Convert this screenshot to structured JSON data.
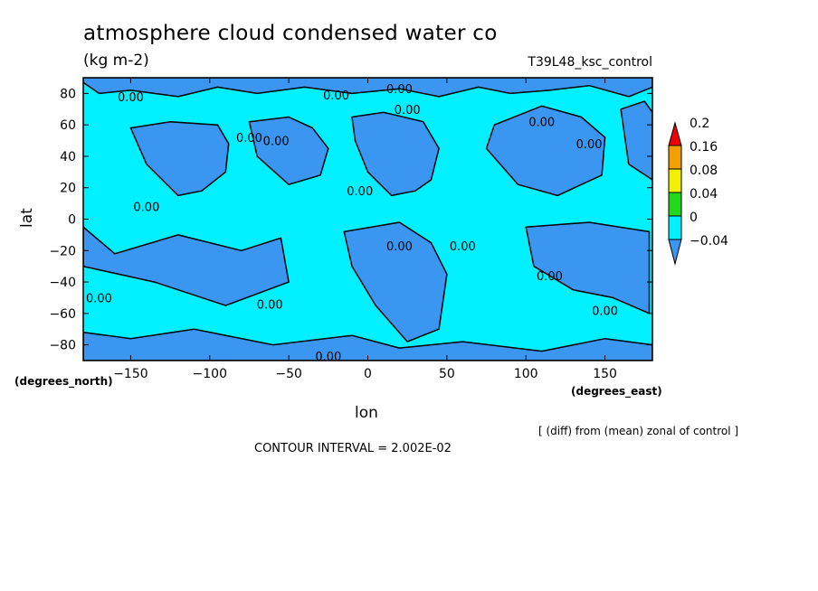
{
  "title": "atmosphere cloud condensed water co",
  "units": "(kg m-2)",
  "subtitle": "T39L48_ksc_control",
  "note": "[ (diff) from (mean) zonal of control ]",
  "contour_interval": "CONTOUR INTERVAL = 2.002E-02",
  "chart_data": {
    "type": "heatmap",
    "title": "atmosphere cloud condensed water co",
    "units": "(kg m-2)",
    "xlabel": "lon",
    "ylabel": "lat",
    "x_units": "(degrees_east)",
    "y_units": "(degrees_north)",
    "xlim": [
      -180,
      180
    ],
    "ylim": [
      -90,
      90
    ],
    "x_ticks": [
      -150,
      -100,
      -50,
      0,
      50,
      100,
      150
    ],
    "y_ticks": [
      80,
      60,
      40,
      20,
      0,
      -20,
      -40,
      -60,
      -80
    ],
    "colorbar": {
      "levels": [
        -0.04,
        0,
        0.04,
        0.08,
        0.16,
        0.2
      ],
      "labels": [
        "-0.04",
        "0",
        "0.04",
        "0.08",
        "0.16",
        "0.2"
      ],
      "colors": [
        "#3a96f0",
        "#00f0ff",
        "#22d81c",
        "#f0f000",
        "#f0a000",
        "#f00000"
      ]
    },
    "contour_label": "0.00",
    "negative_regions": [
      {
        "name": "north-pole-band",
        "lon": [
          -180,
          -170,
          -150,
          -120,
          -95,
          -70,
          -40,
          -10,
          20,
          45,
          70,
          90,
          115,
          140,
          165,
          180,
          180,
          -180
        ],
        "lat": [
          87,
          80,
          82,
          78,
          84,
          80,
          84,
          80,
          83,
          78,
          84,
          80,
          82,
          85,
          78,
          84,
          90,
          90
        ]
      },
      {
        "name": "north-america",
        "lon": [
          -150,
          -125,
          -95,
          -88,
          -90,
          -105,
          -120,
          -140
        ],
        "lat": [
          58,
          62,
          60,
          48,
          30,
          18,
          15,
          35
        ]
      },
      {
        "name": "north-atlantic",
        "lon": [
          -75,
          -50,
          -35,
          -25,
          -30,
          -50,
          -70
        ],
        "lat": [
          62,
          65,
          58,
          45,
          28,
          22,
          40
        ]
      },
      {
        "name": "eurasia",
        "lon": [
          -10,
          10,
          35,
          45,
          40,
          30,
          15,
          0,
          -8
        ],
        "lat": [
          65,
          68,
          62,
          45,
          25,
          18,
          15,
          30,
          50
        ]
      },
      {
        "name": "siberia-pacific",
        "lon": [
          80,
          110,
          135,
          150,
          148,
          120,
          95,
          75
        ],
        "lat": [
          60,
          72,
          65,
          52,
          28,
          15,
          22,
          45
        ]
      },
      {
        "name": "northeast-pacific",
        "lon": [
          160,
          175,
          180,
          180,
          165
        ],
        "lat": [
          70,
          75,
          68,
          25,
          35
        ]
      },
      {
        "name": "southern-band-west",
        "lon": [
          -180,
          -160,
          -120,
          -80,
          -55,
          -50,
          -90,
          -135,
          -180
        ],
        "lat": [
          -5,
          -22,
          -10,
          -20,
          -12,
          -40,
          -55,
          -40,
          -30
        ]
      },
      {
        "name": "southern-indian",
        "lon": [
          -15,
          20,
          40,
          50,
          45,
          25,
          5,
          -10
        ],
        "lat": [
          -8,
          -2,
          -15,
          -35,
          -70,
          -78,
          -55,
          -30
        ]
      },
      {
        "name": "southern-pacific",
        "lon": [
          100,
          140,
          178,
          178,
          155,
          130,
          105
        ],
        "lat": [
          -5,
          -2,
          -8,
          -60,
          -50,
          -45,
          -30
        ]
      },
      {
        "name": "antarctic-band",
        "lon": [
          -180,
          -150,
          -110,
          -60,
          -10,
          20,
          60,
          110,
          150,
          180,
          180,
          -180
        ],
        "lat": [
          -72,
          -76,
          -70,
          -80,
          -74,
          -82,
          -78,
          -84,
          -76,
          -80,
          -90,
          -90
        ]
      }
    ]
  }
}
